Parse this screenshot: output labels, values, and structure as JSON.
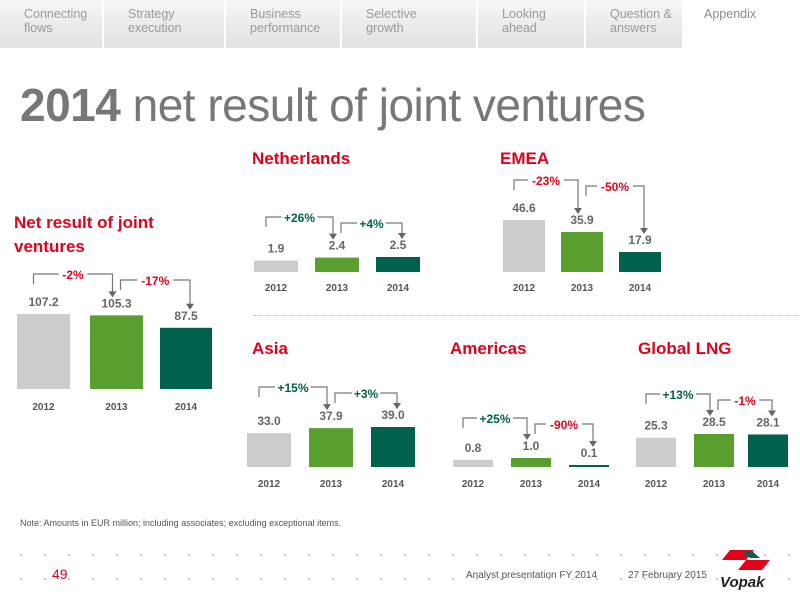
{
  "nav": {
    "tabs": [
      {
        "label": "Connecting\nflows",
        "active": false
      },
      {
        "label": "Strategy\nexecution",
        "active": false
      },
      {
        "label": "Business\nperformance",
        "active": false
      },
      {
        "label": "Selective\ngrowth",
        "active": false
      },
      {
        "label": "Looking\nahead",
        "active": false
      },
      {
        "label": "Question &\nanswers",
        "active": false
      },
      {
        "label": "Appendix",
        "active": true
      }
    ]
  },
  "page": {
    "title_bold": "2014",
    "title_rest": " net result of joint ventures"
  },
  "colors": {
    "2012": "#cccccc",
    "2013": "#5a9e2f",
    "2014": "#00624d",
    "accent_red": "#e3001b",
    "up_green": "#00624d"
  },
  "chart_data": [
    {
      "type": "bar",
      "title": "Net result of joint ventures",
      "categories": [
        "2012",
        "2013",
        "2014"
      ],
      "values": [
        107.2,
        105.3,
        87.5
      ],
      "labels": [
        "107.2",
        "105.3",
        "87.5"
      ],
      "changes": [
        {
          "text": "-2%",
          "dir": "down"
        },
        {
          "text": "-17%",
          "dir": "down"
        }
      ]
    },
    {
      "type": "bar",
      "title": "Netherlands",
      "categories": [
        "2012",
        "2013",
        "2014"
      ],
      "values": [
        1.9,
        2.4,
        2.5
      ],
      "labels": [
        "1.9",
        "2.4",
        "2.5"
      ],
      "changes": [
        {
          "text": "+26%",
          "dir": "up"
        },
        {
          "text": "+4%",
          "dir": "up"
        }
      ]
    },
    {
      "type": "bar",
      "title": "EMEA",
      "categories": [
        "2012",
        "2013",
        "2014"
      ],
      "values": [
        46.6,
        35.9,
        17.9
      ],
      "labels": [
        "46.6",
        "35.9",
        "17.9"
      ],
      "changes": [
        {
          "text": "-23%",
          "dir": "down"
        },
        {
          "text": "-50%",
          "dir": "down"
        }
      ]
    },
    {
      "type": "bar",
      "title": "Asia",
      "categories": [
        "2012",
        "2013",
        "2014"
      ],
      "values": [
        33.0,
        37.9,
        39.0
      ],
      "labels": [
        "33.0",
        "37.9",
        "39.0"
      ],
      "changes": [
        {
          "text": "+15%",
          "dir": "up"
        },
        {
          "text": "+3%",
          "dir": "up"
        }
      ]
    },
    {
      "type": "bar",
      "title": "Americas",
      "categories": [
        "2012",
        "2013",
        "2014"
      ],
      "values": [
        0.8,
        1.0,
        0.1
      ],
      "labels": [
        "0.8",
        "1.0",
        "0.1"
      ],
      "changes": [
        {
          "text": "+25%",
          "dir": "up"
        },
        {
          "text": "-90%",
          "dir": "down"
        }
      ]
    },
    {
      "type": "bar",
      "title": "Global LNG",
      "categories": [
        "2012",
        "2013",
        "2014"
      ],
      "values": [
        25.3,
        28.5,
        28.1
      ],
      "labels": [
        "25.3",
        "28.5",
        "28.1"
      ],
      "changes": [
        {
          "text": "+13%",
          "dir": "up"
        },
        {
          "text": "-1%",
          "dir": "down"
        }
      ]
    }
  ],
  "footer": {
    "note": "Note: Amounts in EUR million; including associates; excluding exceptional items.",
    "page_number": "49",
    "presentation": "Analyst presentation FY 2014",
    "date": "27 February 2015",
    "logo_text": "Vopak"
  }
}
